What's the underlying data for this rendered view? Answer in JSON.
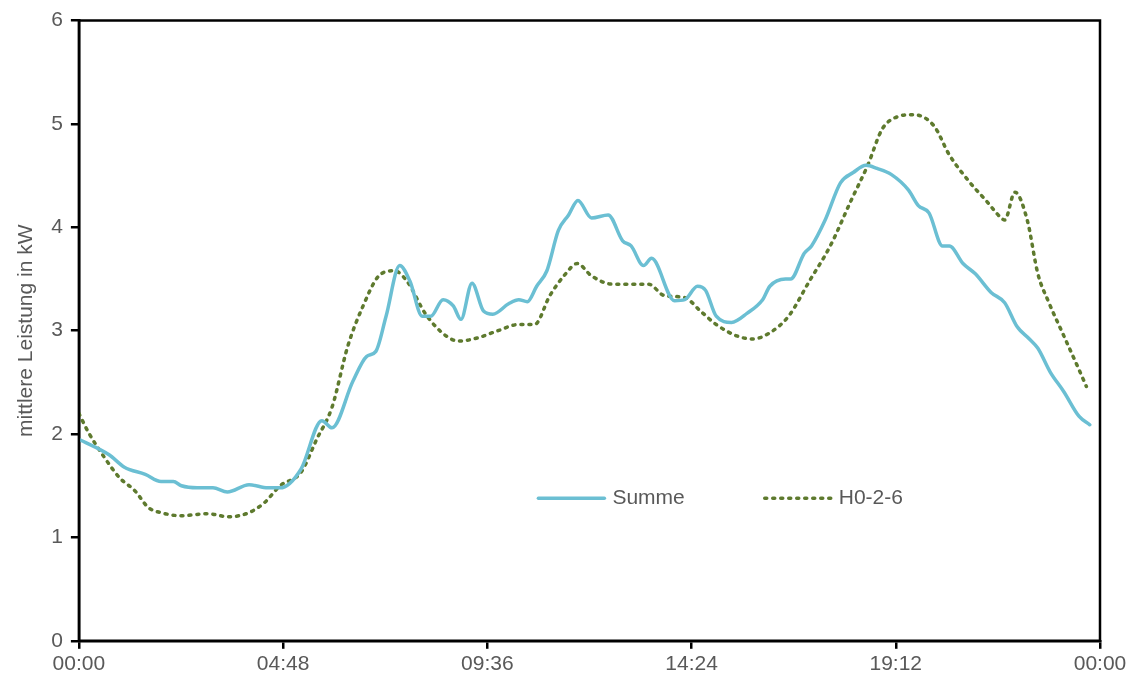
{
  "chart_data": {
    "type": "line",
    "ylabel": "mittlere Leistung in kW",
    "xlim": [
      0,
      24
    ],
    "ylim": [
      0,
      6
    ],
    "xticks": [
      {
        "value": 0,
        "label": "00:00"
      },
      {
        "value": 4.8,
        "label": "04:48"
      },
      {
        "value": 9.6,
        "label": "09:36"
      },
      {
        "value": 14.4,
        "label": "14:24"
      },
      {
        "value": 19.2,
        "label": "19:12"
      },
      {
        "value": 24,
        "label": "00:00"
      }
    ],
    "yticks": [
      0,
      1,
      2,
      3,
      4,
      5,
      6
    ],
    "grid": false,
    "legend": "bottom right",
    "marker": "none",
    "series": [
      {
        "name": "Summe",
        "color": "#6bbfd3",
        "line_style": "solid",
        "x": [
          0,
          0.71,
          1.07,
          1.56,
          1.93,
          2.22,
          2.41,
          2.78,
          3.15,
          3.49,
          4.0,
          4.44,
          4.73,
          5.22,
          5.71,
          5.95,
          6.44,
          6.76,
          6.98,
          7.22,
          7.54,
          7.78,
          8.07,
          8.27,
          8.56,
          8.8,
          8.98,
          9.24,
          9.51,
          9.73,
          10.1,
          10.34,
          10.54,
          10.76,
          11.0,
          11.27,
          11.51,
          11.73,
          12.05,
          12.44,
          12.78,
          12.98,
          13.27,
          13.46,
          14.0,
          14.24,
          14.54,
          14.73,
          14.98,
          15.34,
          15.71,
          16.07,
          16.24,
          16.61,
          16.73,
          17.05,
          17.22,
          17.54,
          17.9,
          18.2,
          18.5,
          18.76,
          19.1,
          19.5,
          19.73,
          19.98,
          20.3,
          20.46,
          20.78,
          21.07,
          21.44,
          21.76,
          22.05,
          22.34,
          22.54,
          22.83,
          23.15,
          23.51,
          23.76
        ],
        "values": [
          1.95,
          1.8,
          1.68,
          1.61,
          1.54,
          1.54,
          1.5,
          1.48,
          1.48,
          1.44,
          1.51,
          1.48,
          1.48,
          1.66,
          2.13,
          2.06,
          2.51,
          2.75,
          2.8,
          3.14,
          3.63,
          3.48,
          3.14,
          3.14,
          3.3,
          3.24,
          3.11,
          3.46,
          3.19,
          3.16,
          3.26,
          3.3,
          3.28,
          3.43,
          3.58,
          3.97,
          4.12,
          4.26,
          4.09,
          4.12,
          3.87,
          3.82,
          3.63,
          3.7,
          3.29,
          3.3,
          3.43,
          3.39,
          3.14,
          3.08,
          3.17,
          3.3,
          3.43,
          3.5,
          3.5,
          3.75,
          3.82,
          4.07,
          4.43,
          4.53,
          4.6,
          4.57,
          4.51,
          4.36,
          4.21,
          4.14,
          3.82,
          3.82,
          3.65,
          3.55,
          3.37,
          3.27,
          3.04,
          2.92,
          2.83,
          2.6,
          2.41,
          2.17,
          2.09
        ]
      },
      {
        "name": "H0-2-6",
        "color": "#5e7a2e",
        "line_style": "dotted",
        "x": [
          0,
          0.22,
          0.59,
          0.95,
          1.32,
          1.63,
          1.93,
          2.41,
          3.02,
          3.51,
          4.0,
          4.37,
          4.73,
          5.22,
          5.59,
          5.95,
          6.32,
          6.68,
          7.05,
          7.41,
          7.71,
          8.15,
          8.63,
          8.93,
          9.37,
          9.85,
          10.34,
          10.71,
          11.07,
          11.44,
          11.71,
          12.05,
          12.54,
          13.02,
          13.39,
          13.76,
          14.24,
          14.61,
          14.98,
          15.46,
          15.83,
          16.2,
          16.68,
          17.17,
          17.66,
          18.15,
          18.54,
          18.88,
          19.24,
          19.61,
          20.1,
          20.46,
          20.95,
          21.32,
          21.68,
          21.76,
          22.0,
          22.29,
          22.54,
          22.78,
          23.15,
          23.51,
          23.68
        ],
        "values": [
          2.2,
          2.02,
          1.78,
          1.58,
          1.45,
          1.29,
          1.24,
          1.21,
          1.23,
          1.2,
          1.24,
          1.34,
          1.5,
          1.63,
          1.95,
          2.26,
          2.85,
          3.24,
          3.53,
          3.58,
          3.48,
          3.16,
          2.95,
          2.9,
          2.93,
          3.0,
          3.06,
          3.06,
          3.34,
          3.55,
          3.65,
          3.53,
          3.45,
          3.45,
          3.45,
          3.34,
          3.32,
          3.19,
          3.06,
          2.95,
          2.92,
          2.97,
          3.14,
          3.48,
          3.82,
          4.26,
          4.6,
          4.95,
          5.07,
          5.09,
          4.98,
          4.7,
          4.43,
          4.26,
          4.09,
          4.07,
          4.34,
          4.07,
          3.55,
          3.29,
          2.95,
          2.62,
          2.46
        ]
      }
    ]
  }
}
